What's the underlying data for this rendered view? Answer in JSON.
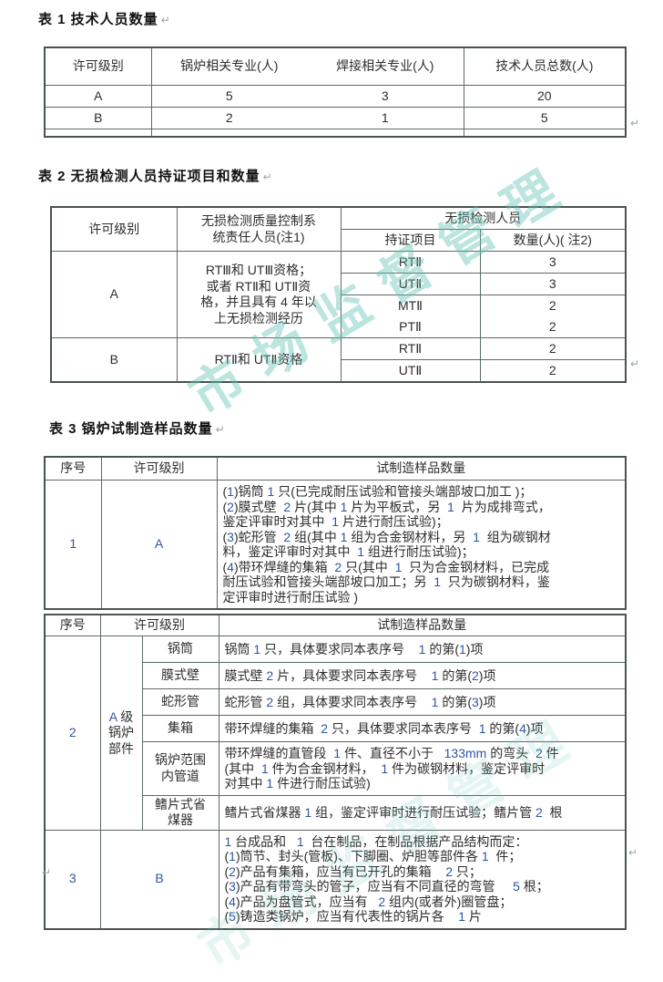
{
  "marks": {
    "pilcrow": "↵"
  },
  "colors": {
    "watermark": "#5fc3b2",
    "latin_text": "#2f55a4",
    "border": "#5d6965",
    "title_text": "#111111"
  },
  "watermark": {
    "text": "市场监督管理"
  },
  "table1": {
    "title": "表 1  技术人员数量",
    "headers": {
      "level": "许可级别",
      "boiler": "锅炉相关专业(人)",
      "welding": "焊接相关专业(人)",
      "total": "技术人员总数(人)"
    },
    "rows": [
      {
        "level": "A",
        "boiler": "5",
        "welding": "3",
        "total": "20"
      },
      {
        "level": "B",
        "boiler": "2",
        "welding": "1",
        "total": "5"
      }
    ]
  },
  "table2": {
    "title": "表 2  无损检测人员持证项目和数量",
    "headers": {
      "level": "许可级别",
      "qc": "无损检测质量控制系\n统责任人员(注1)",
      "group": "无损检测人员",
      "item": "持证项目",
      "qty": "数量(人)(  注2)"
    },
    "sections": [
      {
        "level": "A",
        "qc": "RTⅢ和  UTⅢ资格；\n或者  RTⅡ和   UTⅡ资\n格，并且具有   4  年以\n上无损检测经历",
        "items": [
          {
            "item": "RTⅡ",
            "qty": "3"
          },
          {
            "item": "UTⅡ",
            "qty": "3"
          },
          {
            "item": "MTⅡ",
            "qty": "2"
          },
          {
            "item": "PTⅡ",
            "qty": "2"
          }
        ]
      },
      {
        "level": "B",
        "qc": "RTⅡ和  UTⅡ资格",
        "items": [
          {
            "item": "RTⅡ",
            "qty": "2"
          },
          {
            "item": "UTⅡ",
            "qty": "2"
          }
        ]
      }
    ]
  },
  "table3": {
    "title": "表 3  锅炉试制造样品数量",
    "headers": {
      "seq": "序号",
      "level": "许可级别",
      "qty": "试制造样品数量"
    },
    "part1": {
      "seq": "1",
      "level": "A",
      "content": "(1)锅筒 1 只(已完成耐压试验和管接头端部坡口加工 )；\n(2)膜式壁  2 片(其中 1 片为平板式，另  1  片为成排弯式，\n鉴定评审时对其中  1 片进行耐压试验)；\n(3)蛇形管  2 组(其中 1 组为合金钢材料，另  1  组为碳钢材\n料，鉴定评审时对其中  1 组进行耐压试验)；\n(4)带环焊缝的集箱  2 只(其中  1  只为合金钢材料，已完成\n耐压试验和管接头端部坡口加工；另  1  只为碳钢材料，鉴\n定评审时进行耐压试验 )"
    },
    "row2": {
      "seq": "2",
      "level": "A 级\n锅炉\n部件",
      "parts": [
        {
          "name": "锅筒",
          "desc": "锅筒 1 只，具体要求同本表序号    1 的第(1)项"
        },
        {
          "name": "膜式壁",
          "desc": "膜式壁 2 片，具体要求同本表序号    1 的第(2)项"
        },
        {
          "name": "蛇形管",
          "desc": "蛇形管 2 组，具体要求同本表序号    1 的第(3)项"
        },
        {
          "name": "集箱",
          "desc": "带环焊缝的集箱  2 只，具体要求同本表序号  1 的第(4)项"
        },
        {
          "name": "锅炉范围\n内管道",
          "desc": "带环焊缝的直管段  1 件、直径不小于   133mm 的弯头  2 件\n(其中  1 件为合金钢材料，  1 件为碳钢材料，鉴定评审时\n对其中 1 件进行耐压试验)"
        },
        {
          "name": "鳍片式省\n煤器",
          "desc": "鳍片式省煤器 1 组，鉴定评审时进行耐压试验；鳍片管 2  根"
        }
      ]
    },
    "row3": {
      "seq": "3",
      "level": "B",
      "content": "1 台成品和   1  台在制品，在制品根据产品结构而定：\n(1)筒节、封头(管板)、下脚圈、炉胆等部件各 1  件；\n(2)产品有集箱，应当有已开孔的集箱    2 只；\n(3)产品有带弯头的管子，应当有不同直径的弯管     5 根；\n(4)产品为盘管式，应当有   2 组内(或者外)圈管盘；\n(5)铸造类锅炉，应当有代表性的锅片各    1 片"
    }
  }
}
